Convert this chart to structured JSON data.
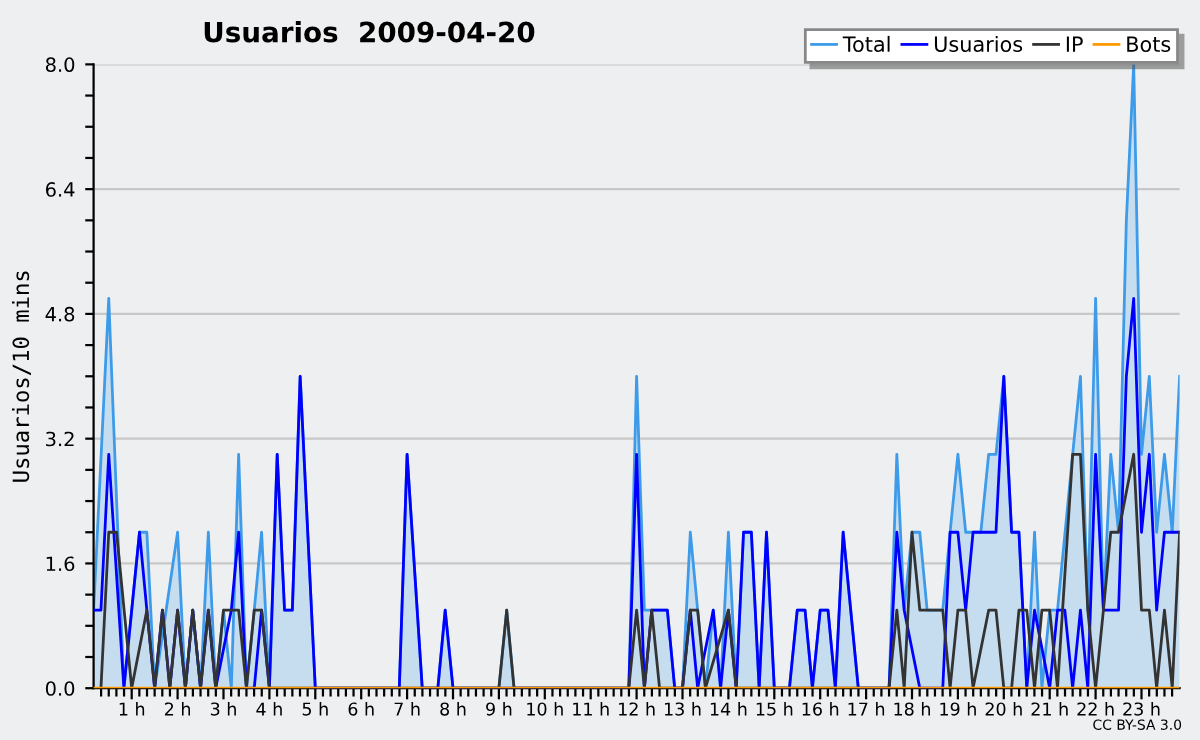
{
  "chart_data": {
    "type": "line",
    "title": "Usuarios  2009-04-20",
    "ylabel": "Usuarios/10 mins",
    "xlim": [
      0.17,
      23.83
    ],
    "ylim": [
      0,
      8
    ],
    "xticks": [
      {
        "value": 1,
        "label": "1 h"
      },
      {
        "value": 2,
        "label": "2 h"
      },
      {
        "value": 3,
        "label": "3 h"
      },
      {
        "value": 4,
        "label": "4 h"
      },
      {
        "value": 5,
        "label": "5 h"
      },
      {
        "value": 6,
        "label": "6 h"
      },
      {
        "value": 7,
        "label": "7 h"
      },
      {
        "value": 8,
        "label": "8 h"
      },
      {
        "value": 9,
        "label": "9 h"
      },
      {
        "value": 10,
        "label": "10 h"
      },
      {
        "value": 11,
        "label": "11 h"
      },
      {
        "value": 12,
        "label": "12 h"
      },
      {
        "value": 13,
        "label": "13 h"
      },
      {
        "value": 14,
        "label": "14 h"
      },
      {
        "value": 15,
        "label": "15 h"
      },
      {
        "value": 16,
        "label": "16 h"
      },
      {
        "value": 17,
        "label": "17 h"
      },
      {
        "value": 18,
        "label": "18 h"
      },
      {
        "value": 19,
        "label": "19 h"
      },
      {
        "value": 20,
        "label": "20 h"
      },
      {
        "value": 21,
        "label": "21 h"
      },
      {
        "value": 22,
        "label": "22 h"
      },
      {
        "value": 23,
        "label": "23 h"
      }
    ],
    "yticks": [
      {
        "value": 0,
        "label": "0.0"
      },
      {
        "value": 1.6,
        "label": "1.6"
      },
      {
        "value": 3.2,
        "label": "3.2"
      },
      {
        "value": 4.8,
        "label": "4.8"
      },
      {
        "value": 6.4,
        "label": "6.4"
      },
      {
        "value": 8,
        "label": "8.0"
      }
    ],
    "grid": "y",
    "legend": "top right",
    "annotations": [
      "CC BY-SA 3.0"
    ],
    "series": [
      {
        "name": "Total",
        "type": "area",
        "color": "#3d9be9",
        "x": [
          0.17,
          0.5,
          0.83,
          1.17,
          1.33,
          1.5,
          2,
          2.17,
          2.33,
          2.5,
          2.67,
          2.83,
          3,
          3.17,
          3.33,
          3.5,
          3.67,
          3.83,
          4,
          4.17,
          4.33,
          4.5,
          4.67,
          5,
          6.83,
          7,
          7.33,
          7.67,
          7.83,
          8,
          9,
          9.17,
          9.33,
          11.83,
          12,
          12.17,
          12.33,
          12.67,
          12.83,
          13,
          13.17,
          13.33,
          13.5,
          13.67,
          13.83,
          14,
          14.17,
          14.33,
          14.5,
          14.67,
          14.83,
          15,
          15.33,
          15.5,
          15.67,
          15.83,
          16,
          16.17,
          16.33,
          16.5,
          16.83,
          17.5,
          17.67,
          17.83,
          18,
          18.17,
          18.33,
          18.67,
          18.83,
          19,
          19.17,
          19.5,
          19.67,
          19.83,
          20,
          20.17,
          20.33,
          20.5,
          20.67,
          20.83,
          21,
          21.17,
          21.5,
          21.67,
          21.83,
          22,
          22.17,
          22.33,
          22.5,
          22.67,
          22.83,
          23,
          23.17,
          23.33,
          23.5,
          23.67,
          23.83
        ],
        "values": [
          1,
          5,
          0,
          2,
          2,
          0,
          2,
          0,
          1,
          0,
          2,
          0,
          1,
          0,
          3,
          0,
          1,
          2,
          0,
          3,
          1,
          1,
          4,
          0,
          0,
          3,
          0,
          0,
          1,
          0,
          0,
          1,
          0,
          0,
          4,
          1,
          1,
          1,
          0,
          0,
          2,
          1,
          0,
          1,
          0,
          2,
          0,
          2,
          2,
          0,
          2,
          0,
          0,
          1,
          1,
          0,
          1,
          1,
          0,
          2,
          0,
          0,
          3,
          1,
          2,
          2,
          1,
          1,
          2,
          3,
          2,
          2,
          3,
          3,
          4,
          2,
          2,
          0,
          2,
          0,
          1,
          1,
          3,
          4,
          1,
          5,
          1,
          3,
          2,
          6,
          8,
          3,
          4,
          2,
          3,
          2,
          4
        ]
      },
      {
        "name": "Usuarios",
        "color": "#0000ff",
        "x": [
          0.17,
          0.33,
          0.5,
          0.83,
          1.17,
          1.33,
          1.5,
          1.67,
          1.83,
          2,
          2.17,
          2.33,
          2.5,
          2.67,
          2.83,
          3.17,
          3.33,
          3.5,
          3.67,
          3.83,
          4,
          4.17,
          4.33,
          4.5,
          4.67,
          5,
          6.83,
          7,
          7.33,
          7.67,
          7.83,
          8,
          11.83,
          12,
          12.17,
          12.33,
          12.67,
          12.83,
          13,
          13.17,
          13.33,
          13.67,
          13.83,
          14,
          14.17,
          14.33,
          14.5,
          14.67,
          14.83,
          15,
          15.33,
          15.5,
          15.67,
          15.83,
          16,
          16.17,
          16.33,
          16.5,
          16.83,
          17.5,
          17.67,
          17.83,
          18.17,
          18.67,
          18.83,
          19,
          19.17,
          19.33,
          19.83,
          20,
          20.17,
          20.33,
          20.5,
          20.67,
          21,
          21.17,
          21.33,
          21.5,
          21.67,
          21.83,
          22,
          22.17,
          22.5,
          22.67,
          22.83,
          23,
          23.17,
          23.33,
          23.5,
          23.83
        ],
        "values": [
          1,
          1,
          3,
          0,
          2,
          1,
          0,
          1,
          0,
          1,
          0,
          1,
          0,
          1,
          0,
          1,
          2,
          0,
          0,
          1,
          0,
          3,
          1,
          1,
          4,
          0,
          0,
          3,
          0,
          0,
          1,
          0,
          0,
          3,
          0,
          1,
          1,
          0,
          0,
          1,
          0,
          1,
          0,
          1,
          0,
          2,
          2,
          0,
          2,
          0,
          0,
          1,
          1,
          0,
          1,
          1,
          0,
          2,
          0,
          0,
          2,
          1,
          0,
          0,
          2,
          2,
          1,
          2,
          2,
          4,
          2,
          2,
          0,
          1,
          0,
          1,
          1,
          0,
          1,
          0,
          3,
          1,
          1,
          4,
          5,
          2,
          3,
          1,
          2,
          2
        ]
      },
      {
        "name": "IP",
        "color": "#333333",
        "x": [
          0.33,
          0.5,
          0.67,
          1,
          1.33,
          1.5,
          1.67,
          1.83,
          2,
          2.17,
          2.33,
          2.5,
          2.67,
          2.83,
          3,
          3.33,
          3.5,
          3.67,
          3.83,
          4,
          9,
          9.17,
          9.33,
          11.83,
          12,
          12.17,
          12.33,
          12.5,
          13,
          13.17,
          13.33,
          13.5,
          14,
          14.17,
          17.5,
          17.67,
          17.83,
          18,
          18.17,
          18.67,
          18.83,
          19,
          19.17,
          19.33,
          19.67,
          19.83,
          20,
          20.17,
          20.33,
          20.5,
          20.67,
          20.83,
          21,
          21.17,
          21.5,
          21.67,
          21.83,
          22,
          22.17,
          22.33,
          22.5,
          22.83,
          23,
          23.17,
          23.33,
          23.5,
          23.67,
          23.83
        ],
        "values": [
          0,
          2,
          2,
          0,
          1,
          0,
          1,
          0,
          1,
          0,
          1,
          0,
          1,
          0,
          1,
          1,
          0,
          1,
          1,
          0,
          0,
          1,
          0,
          0,
          1,
          0,
          1,
          0,
          0,
          1,
          1,
          0,
          1,
          0,
          0,
          1,
          0,
          2,
          1,
          1,
          0,
          1,
          1,
          0,
          1,
          1,
          0,
          0,
          1,
          1,
          0,
          1,
          1,
          0,
          3,
          3,
          1,
          0,
          1,
          2,
          2,
          3,
          1,
          1,
          0,
          1,
          0,
          2
        ]
      },
      {
        "name": "Bots",
        "color": "#ff9900",
        "x": [
          0.17,
          23.83
        ],
        "values": [
          0,
          0
        ]
      }
    ]
  }
}
